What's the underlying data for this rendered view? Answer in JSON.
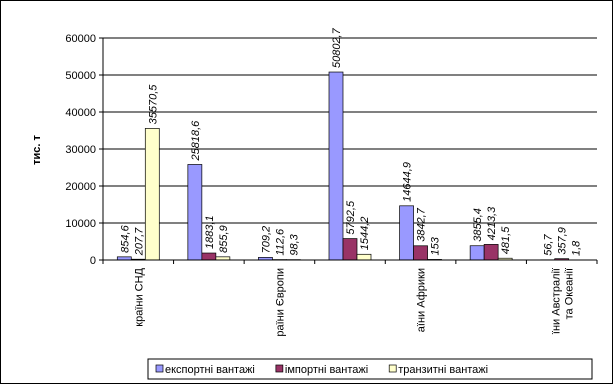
{
  "chart_data": {
    "type": "bar",
    "y_label": "тис. т",
    "categories": [
      "країни СНД",
      null,
      "раїни Європи",
      null,
      "аїни Африки",
      null,
      "їни Австралії\nта Океанії"
    ],
    "series": [
      {
        "name": "експортні вантажі",
        "color": "#9999ff",
        "values": [
          854.6,
          25818.6,
          709.2,
          50802.7,
          14644.9,
          3855.4,
          56.7
        ],
        "value_labels": [
          "854,6",
          "25818,6",
          "709,2",
          "50802,7",
          "14644,9",
          "3855,4",
          "56,7"
        ]
      },
      {
        "name": "імпортні вантажі",
        "color": "#993366",
        "values": [
          207.7,
          1883.1,
          112.6,
          5792.5,
          3842.7,
          4213.3,
          357.9
        ],
        "value_labels": [
          "207,7",
          "1883,1",
          "112,6",
          "5792,5",
          "3842,7",
          "4213,3",
          "357,9"
        ]
      },
      {
        "name": "транзитні вантажі",
        "color": "#ffffcc",
        "values": [
          35570.5,
          855.9,
          98.3,
          1544.2,
          153,
          481.5,
          1.8
        ],
        "value_labels": [
          "35570,5",
          "855,9",
          "98,3",
          "1544,2",
          "153",
          "481,5",
          "1,8"
        ]
      }
    ],
    "ylim": [
      0,
      60000
    ],
    "yticks": [
      0,
      10000,
      20000,
      30000,
      40000,
      50000,
      60000
    ],
    "grid": true,
    "legend": "bottom"
  }
}
